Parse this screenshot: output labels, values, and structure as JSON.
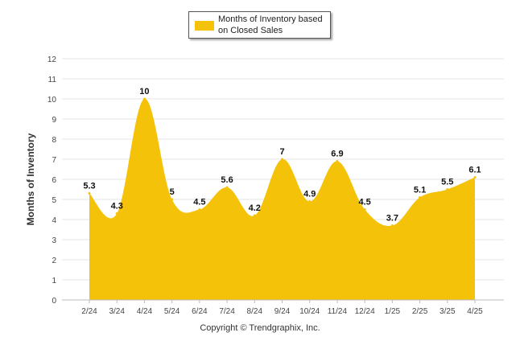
{
  "chart_data": {
    "type": "area",
    "categories": [
      "2/24",
      "3/24",
      "4/24",
      "5/24",
      "6/24",
      "7/24",
      "8/24",
      "9/24",
      "10/24",
      "11/24",
      "12/24",
      "1/25",
      "2/25",
      "3/25",
      "4/25"
    ],
    "series": [
      {
        "name": "Months of Inventory based on Closed Sales",
        "values": [
          5.3,
          4.3,
          10,
          5,
          4.5,
          5.6,
          4.2,
          7,
          4.9,
          6.9,
          4.5,
          3.7,
          5.1,
          5.5,
          6.1
        ]
      }
    ],
    "data_labels": [
      "5.3",
      "4.3",
      "10",
      "5",
      "4.5",
      "5.6",
      "4.2",
      "7",
      "4.9",
      "6.9",
      "4.5",
      "3.7",
      "5.1",
      "5.5",
      "6.1"
    ],
    "ylabel": "Months of Inventory",
    "ylim": [
      0,
      12
    ],
    "yticks": [
      "0",
      "1",
      "2",
      "3",
      "4",
      "5",
      "6",
      "7",
      "8",
      "9",
      "10",
      "11",
      "12"
    ],
    "grid": true,
    "legend_position": "top-center",
    "colors": {
      "fill": "#f5c20a",
      "grid": "#e6e6e6"
    }
  },
  "legend": {
    "line1": "Months of Inventory based",
    "line2": "on Closed Sales"
  },
  "footer": "Copyright © Trendgraphix, Inc."
}
